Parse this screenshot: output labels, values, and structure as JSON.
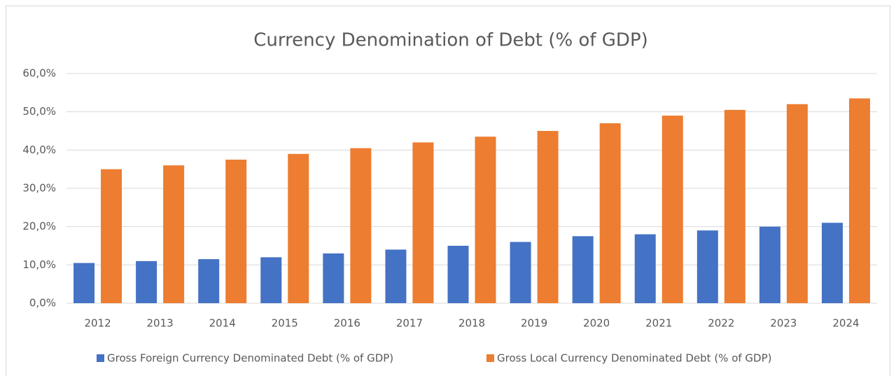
{
  "chart_data": {
    "type": "bar",
    "title": "Currency Denomination of Debt (% of GDP)",
    "categories": [
      "2012",
      "2013",
      "2014",
      "2015",
      "2016",
      "2017",
      "2018",
      "2019",
      "2020",
      "2021",
      "2022",
      "2023",
      "2024"
    ],
    "series": [
      {
        "name": "Gross Foreign Currency Denominated Debt (% of GDP)",
        "color": "#4472c4",
        "values": [
          10.5,
          11,
          11.5,
          12,
          13,
          14,
          15,
          16,
          17.5,
          18,
          19,
          20,
          21
        ]
      },
      {
        "name": "Gross Local Currency Denominated Debt (% of GDP)",
        "color": "#ed7d31",
        "values": [
          35,
          36,
          37.5,
          39,
          40.5,
          42,
          43.5,
          45,
          47,
          49,
          50.5,
          52,
          53.5
        ]
      }
    ],
    "ylim": [
      0,
      60
    ],
    "yticks": [
      {
        "value": 0,
        "label": "0,0%"
      },
      {
        "value": 10,
        "label": "10,0%"
      },
      {
        "value": 20,
        "label": "20,0%"
      },
      {
        "value": 30,
        "label": "30,0%"
      },
      {
        "value": 40,
        "label": "40,0%"
      },
      {
        "value": 50,
        "label": "50,0%"
      },
      {
        "value": 60,
        "label": "60,0%"
      }
    ],
    "grid": true,
    "legend": "bottom"
  }
}
